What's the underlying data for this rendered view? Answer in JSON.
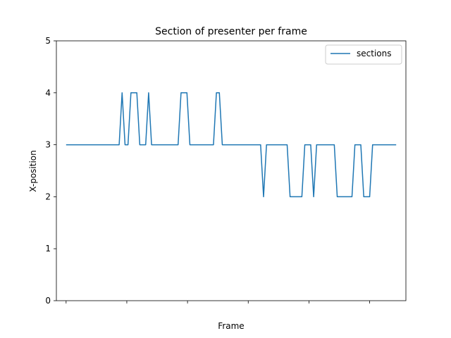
{
  "chart_data": {
    "type": "line",
    "title": "Section of presenter per frame",
    "xlabel": "Frame",
    "ylabel": "X-position",
    "ylim": [
      0,
      5
    ],
    "xlim": [
      -3.3,
      115.3
    ],
    "yticks": [
      0,
      1,
      2,
      3,
      4,
      5
    ],
    "xtick_count": 6,
    "grid": false,
    "legend_position": "top-right",
    "series": [
      {
        "name": "sections",
        "color": "#1f77b4",
        "x": [
          0,
          1,
          2,
          3,
          4,
          5,
          6,
          7,
          8,
          9,
          10,
          11,
          12,
          13,
          14,
          15,
          16,
          17,
          18,
          19,
          20,
          21,
          22,
          23,
          24,
          25,
          26,
          27,
          28,
          29,
          30,
          31,
          32,
          33,
          34,
          35,
          36,
          37,
          38,
          39,
          40,
          41,
          42,
          43,
          44,
          45,
          46,
          47,
          48,
          49,
          50,
          51,
          52,
          53,
          54,
          55,
          56,
          57,
          58,
          59,
          60,
          61,
          62,
          63,
          64,
          65,
          66,
          67,
          68,
          69,
          70,
          71,
          72,
          73,
          74,
          75,
          76,
          77,
          78,
          79,
          80,
          81,
          82,
          83,
          84,
          85,
          86,
          87,
          88,
          89,
          90,
          91,
          92,
          93,
          94,
          95,
          96,
          97,
          98,
          99,
          100,
          101,
          102,
          103,
          104,
          105,
          106,
          107,
          108,
          109,
          110,
          111,
          112
        ],
        "values": [
          3,
          3,
          3,
          3,
          3,
          3,
          3,
          3,
          3,
          3,
          3,
          3,
          3,
          3,
          3,
          3,
          3,
          3,
          3,
          4,
          3,
          3,
          4,
          4,
          4,
          3,
          3,
          3,
          4,
          3,
          3,
          3,
          3,
          3,
          3,
          3,
          3,
          3,
          3,
          4,
          4,
          4,
          3,
          3,
          3,
          3,
          3,
          3,
          3,
          3,
          3,
          4,
          4,
          3,
          3,
          3,
          3,
          3,
          3,
          3,
          3,
          3,
          3,
          3,
          3,
          3,
          3,
          2,
          3,
          3,
          3,
          3,
          3,
          3,
          3,
          3,
          2,
          2,
          2,
          2,
          2,
          3,
          3,
          3,
          2,
          3,
          3,
          3,
          3,
          3,
          3,
          3,
          2,
          2,
          2,
          2,
          2,
          2,
          3,
          3,
          3,
          2,
          2,
          2,
          3,
          3,
          3,
          3,
          3,
          3,
          3,
          3,
          3
        ]
      }
    ]
  }
}
